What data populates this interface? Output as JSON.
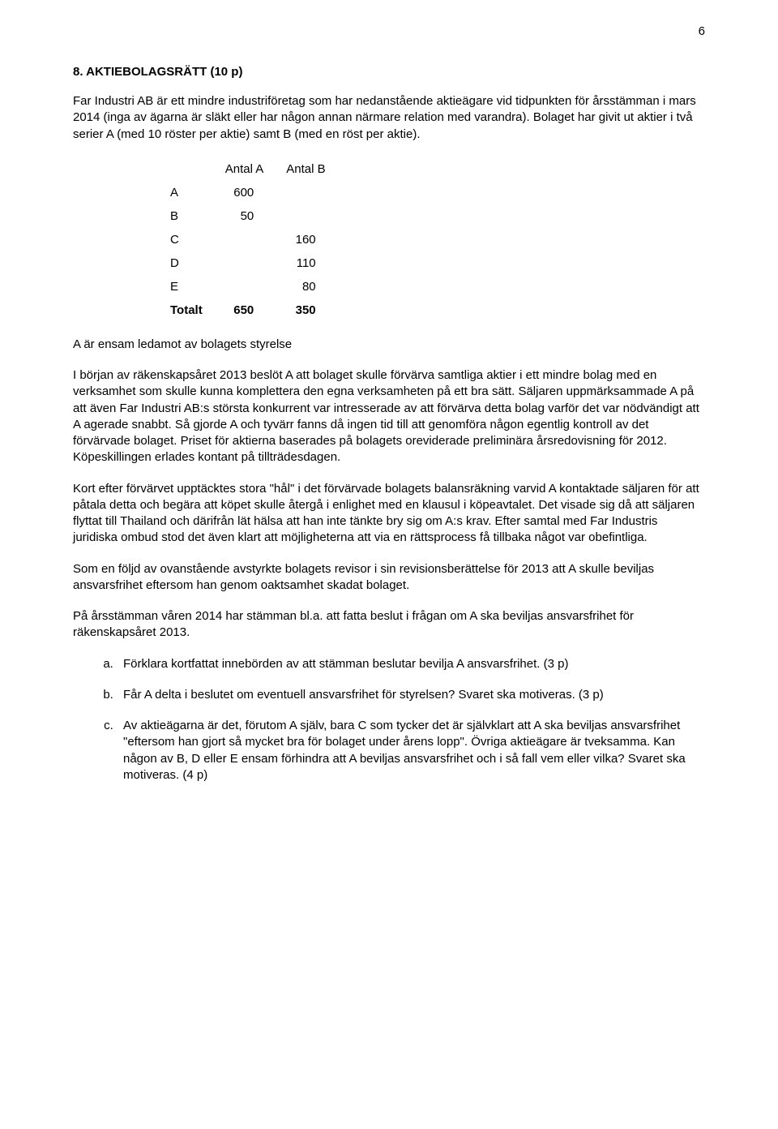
{
  "page_number": "6",
  "heading": "8. AKTIEBOLAGSRÄTT (10 p)",
  "intro": "Far Industri AB är ett mindre industriföretag som har nedanstående aktieägare vid tidpunkten för årsstämman i mars 2014 (inga av ägarna är släkt eller har någon annan närmare relation med varandra). Bolaget har givit ut aktier i två serier A (med 10 röster per aktie) samt B (med en röst per aktie).",
  "table": {
    "col_a": "Antal A",
    "col_b": "Antal B",
    "rows": [
      {
        "label": "A",
        "a": "600",
        "b": ""
      },
      {
        "label": "B",
        "a": "50",
        "b": ""
      },
      {
        "label": "C",
        "a": "",
        "b": "160"
      },
      {
        "label": "D",
        "a": "",
        "b": "110"
      },
      {
        "label": "E",
        "a": "",
        "b": "80"
      }
    ],
    "total_label": "Totalt",
    "total_a": "650",
    "total_b": "350"
  },
  "after_table": "A är ensam ledamot av bolagets styrelse",
  "p1": "I början av räkenskapsåret 2013 beslöt A att bolaget skulle förvärva samtliga aktier i ett mindre bolag med en verksamhet som skulle kunna komplettera den egna verksamheten på ett bra sätt. Säljaren uppmärksammade A på att även Far Industri AB:s största konkurrent var intresserade av att förvärva detta bolag varför det var nödvändigt att A agerade snabbt. Så gjorde A och tyvärr fanns då ingen tid till att genomföra någon egentlig kontroll av det förvärvade bolaget. Priset för aktierna baserades på bolagets oreviderade preliminära årsredovisning för 2012. Köpeskillingen erlades kontant på tillträdesdagen.",
  "p2": "Kort efter förvärvet upptäcktes stora \"hål\" i det förvärvade bolagets balansräkning varvid A kontaktade säljaren för att påtala detta och begära att köpet skulle återgå i enlighet med en klausul i köpeavtalet. Det visade sig då att säljaren flyttat till Thailand och därifrån lät hälsa att han inte tänkte bry sig om A:s krav. Efter samtal med Far Industris juridiska ombud stod det även klart att möjligheterna att via en rättsprocess få tillbaka något var obefintliga.",
  "p3": "Som en följd av ovanstående avstyrkte bolagets revisor i sin revisionsberättelse för 2013 att A skulle beviljas ansvarsfrihet eftersom han genom oaktsamhet skadat bolaget.",
  "p4": "På årsstämman våren 2014 har stämman bl.a. att fatta beslut i frågan om A ska beviljas ansvarsfrihet för räkenskapsåret 2013.",
  "q_a": "Förklara kortfattat innebörden av att stämman beslutar bevilja A ansvarsfrihet. (3 p)",
  "q_b": "Får A delta i beslutet om eventuell ansvarsfrihet för styrelsen? Svaret ska motiveras. (3 p)",
  "q_c": "Av aktieägarna är det, förutom A själv, bara C som tycker det är självklart att A ska beviljas ansvarsfrihet \"eftersom han gjort så mycket bra för bolaget under årens lopp\". Övriga aktieägare är tveksamma. Kan någon av B, D eller E ensam förhindra att A beviljas ansvarsfrihet och i så fall vem eller vilka? Svaret ska motiveras. (4 p)"
}
